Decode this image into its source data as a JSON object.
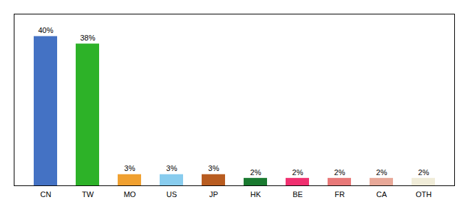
{
  "chart_data": {
    "type": "bar",
    "categories": [
      "CN",
      "TW",
      "MO",
      "US",
      "JP",
      "HK",
      "BE",
      "FR",
      "CA",
      "OTH"
    ],
    "values": [
      40,
      38,
      3,
      3,
      3,
      2,
      2,
      2,
      2,
      2
    ],
    "value_labels": [
      "40%",
      "38%",
      "3%",
      "3%",
      "3%",
      "2%",
      "2%",
      "2%",
      "2%",
      "2%"
    ],
    "colors": [
      "#4472c4",
      "#2db228",
      "#f0a030",
      "#88ccee",
      "#b85c20",
      "#1a7a30",
      "#f03070",
      "#e87878",
      "#e8a898",
      "#f0ecd8"
    ],
    "data_labels": true,
    "ylim": [
      0,
      46
    ],
    "tick_labels": "x"
  }
}
